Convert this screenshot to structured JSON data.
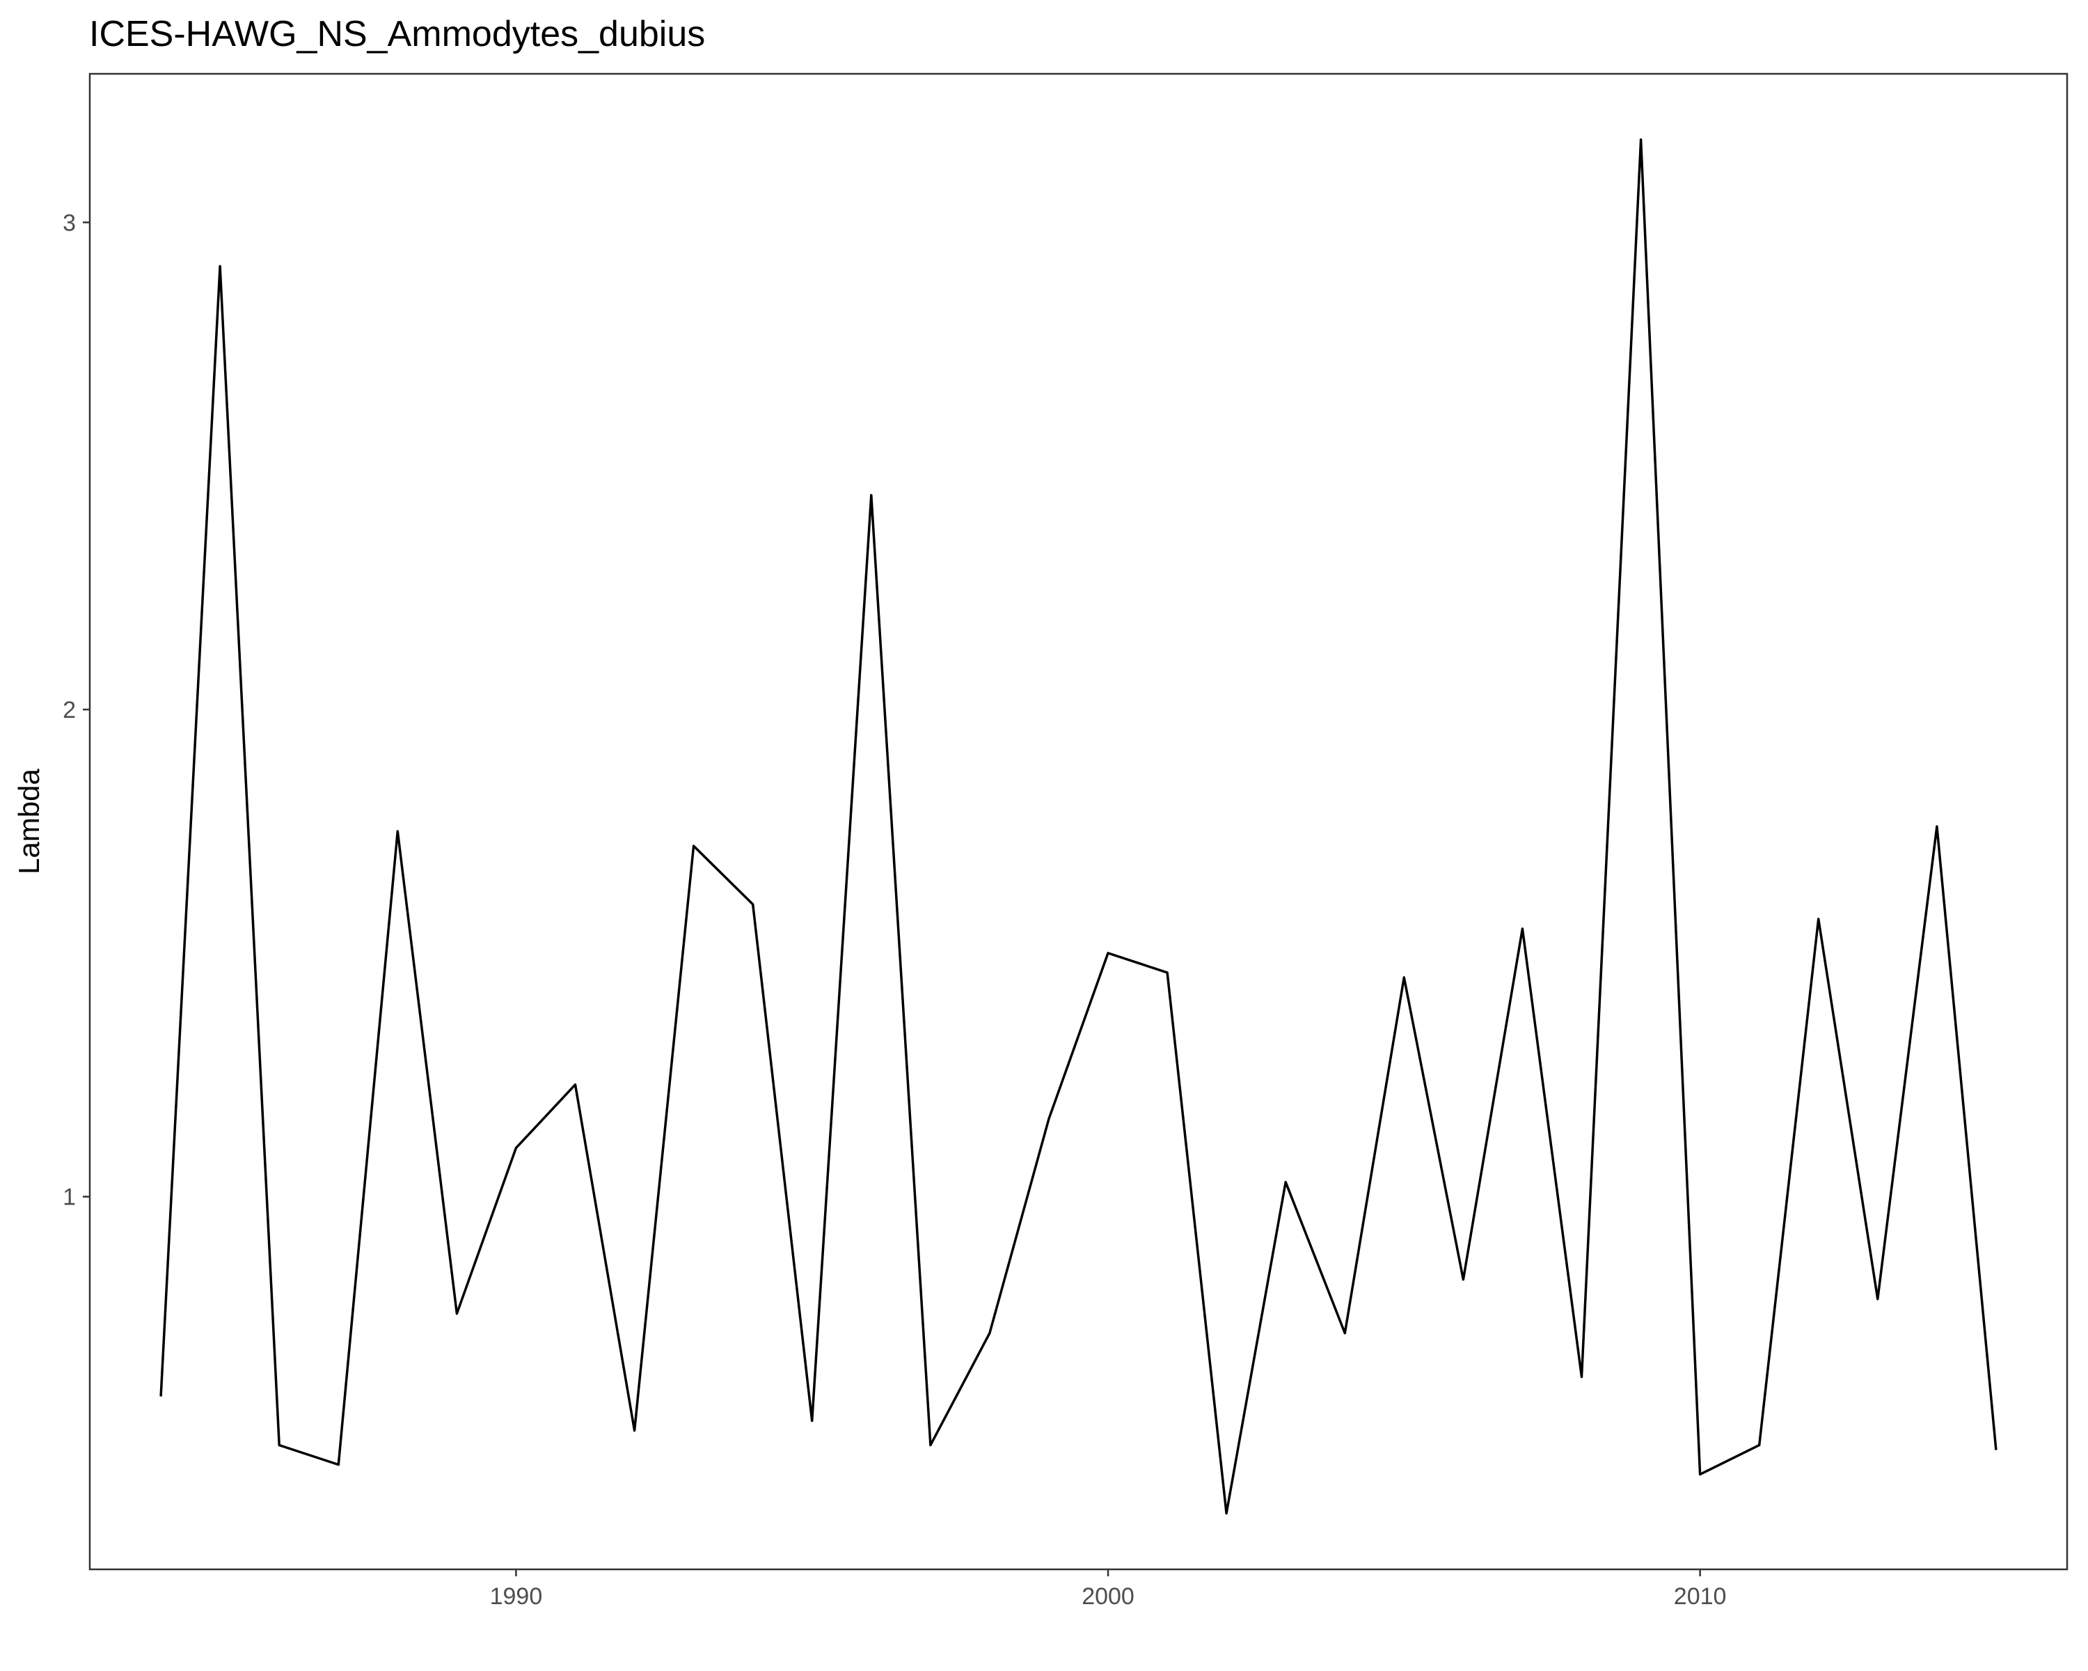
{
  "chart_data": {
    "type": "line",
    "title": "ICES-HAWG_NS_Ammodytes_dubius",
    "xlabel": "",
    "ylabel": "Lambda",
    "xlim": [
      1982.8,
      2016.2
    ],
    "ylim": [
      0.235,
      3.305
    ],
    "x_ticks": [
      1990,
      2000,
      2010
    ],
    "y_ticks": [
      1,
      2,
      3
    ],
    "grid": false,
    "line_color": "#000000",
    "series": [
      {
        "x": [
          1984,
          1985,
          1986,
          1987,
          1988,
          1989,
          1990,
          1991,
          1992,
          1993,
          1994,
          1995,
          1996,
          1997,
          1998,
          1999,
          2000,
          2001,
          2002,
          2003,
          2004,
          2005,
          2006,
          2007,
          2008,
          2009,
          2010,
          2011,
          2012,
          2013,
          2014,
          2015
        ],
        "y": [
          0.59,
          2.91,
          0.49,
          0.45,
          1.75,
          0.76,
          1.1,
          1.23,
          0.52,
          1.72,
          1.6,
          0.54,
          2.44,
          0.49,
          0.72,
          1.16,
          1.5,
          1.46,
          0.35,
          1.03,
          0.72,
          1.45,
          0.83,
          1.55,
          0.63,
          3.17,
          0.43,
          0.49,
          1.57,
          0.79,
          1.76,
          0.48
        ]
      }
    ]
  }
}
